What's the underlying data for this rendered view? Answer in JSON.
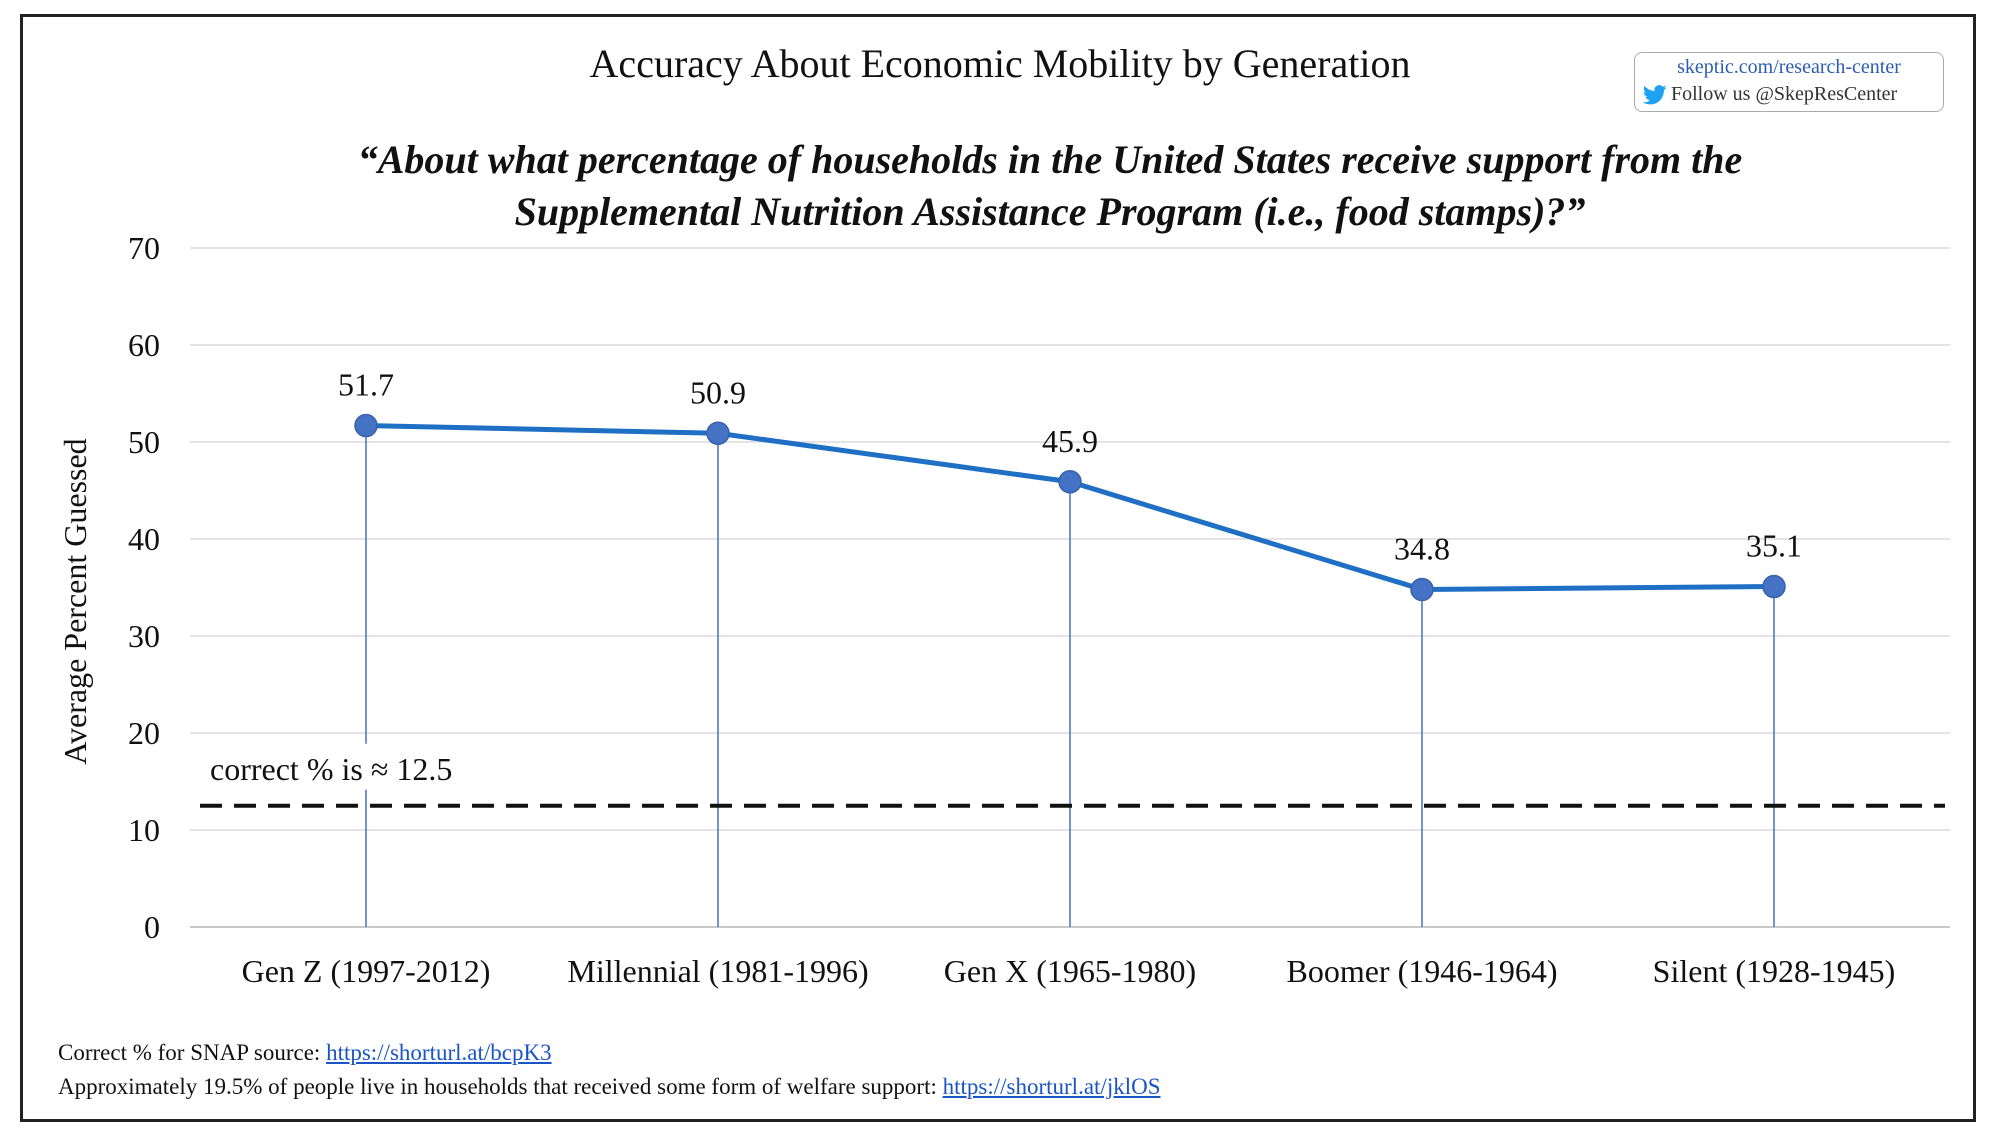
{
  "chart_data": {
    "type": "line",
    "title": "Accuracy About Economic Mobility by Generation",
    "subtitle": "“About what percentage of households in the United States receive support from the Supplemental Nutrition Assistance Program (i.e.,  food stamps)?”",
    "subtitle_lines": [
      "“About what percentage of households in the United States receive support from the",
      "Supplemental Nutrition Assistance Program (i.e.,  food stamps)?”"
    ],
    "categories": [
      "Gen Z (1997-2012)",
      "Millennial (1981-1996)",
      "Gen X (1965-1980)",
      "Boomer (1946-1964)",
      "Silent (1928-1945)"
    ],
    "values": [
      51.7,
      50.9,
      45.9,
      34.8,
      35.1
    ],
    "data_labels": [
      "51.7",
      "50.9",
      "45.9",
      "34.8",
      "35.1"
    ],
    "xlabel": "",
    "ylabel": "Average Percent Guessed",
    "ylim": [
      0,
      70
    ],
    "yticks": [
      0,
      10,
      20,
      30,
      40,
      50,
      60,
      70
    ],
    "grid": true,
    "reference_line": {
      "value": 12.5,
      "label": "correct % is ≈  12.5",
      "style": "dashed"
    },
    "series_color": "#1f6fc5",
    "marker_color": "#4472c4",
    "drop_line_color": "#4472c4"
  },
  "credit": {
    "site": "skeptic.com/research-center",
    "follow": "Follow us @SkepResCenter",
    "icon": "twitter-bird-icon",
    "icon_color": "#1da1f2"
  },
  "footer": {
    "line1_text": "Correct % for SNAP source: ",
    "line1_link": "https://shorturl.at/bcpK3 ",
    "line2_text": "Approximately 19.5% of people live in households that received some form of welfare support: ",
    "line2_link": "https://shorturl.at/jklOS"
  }
}
